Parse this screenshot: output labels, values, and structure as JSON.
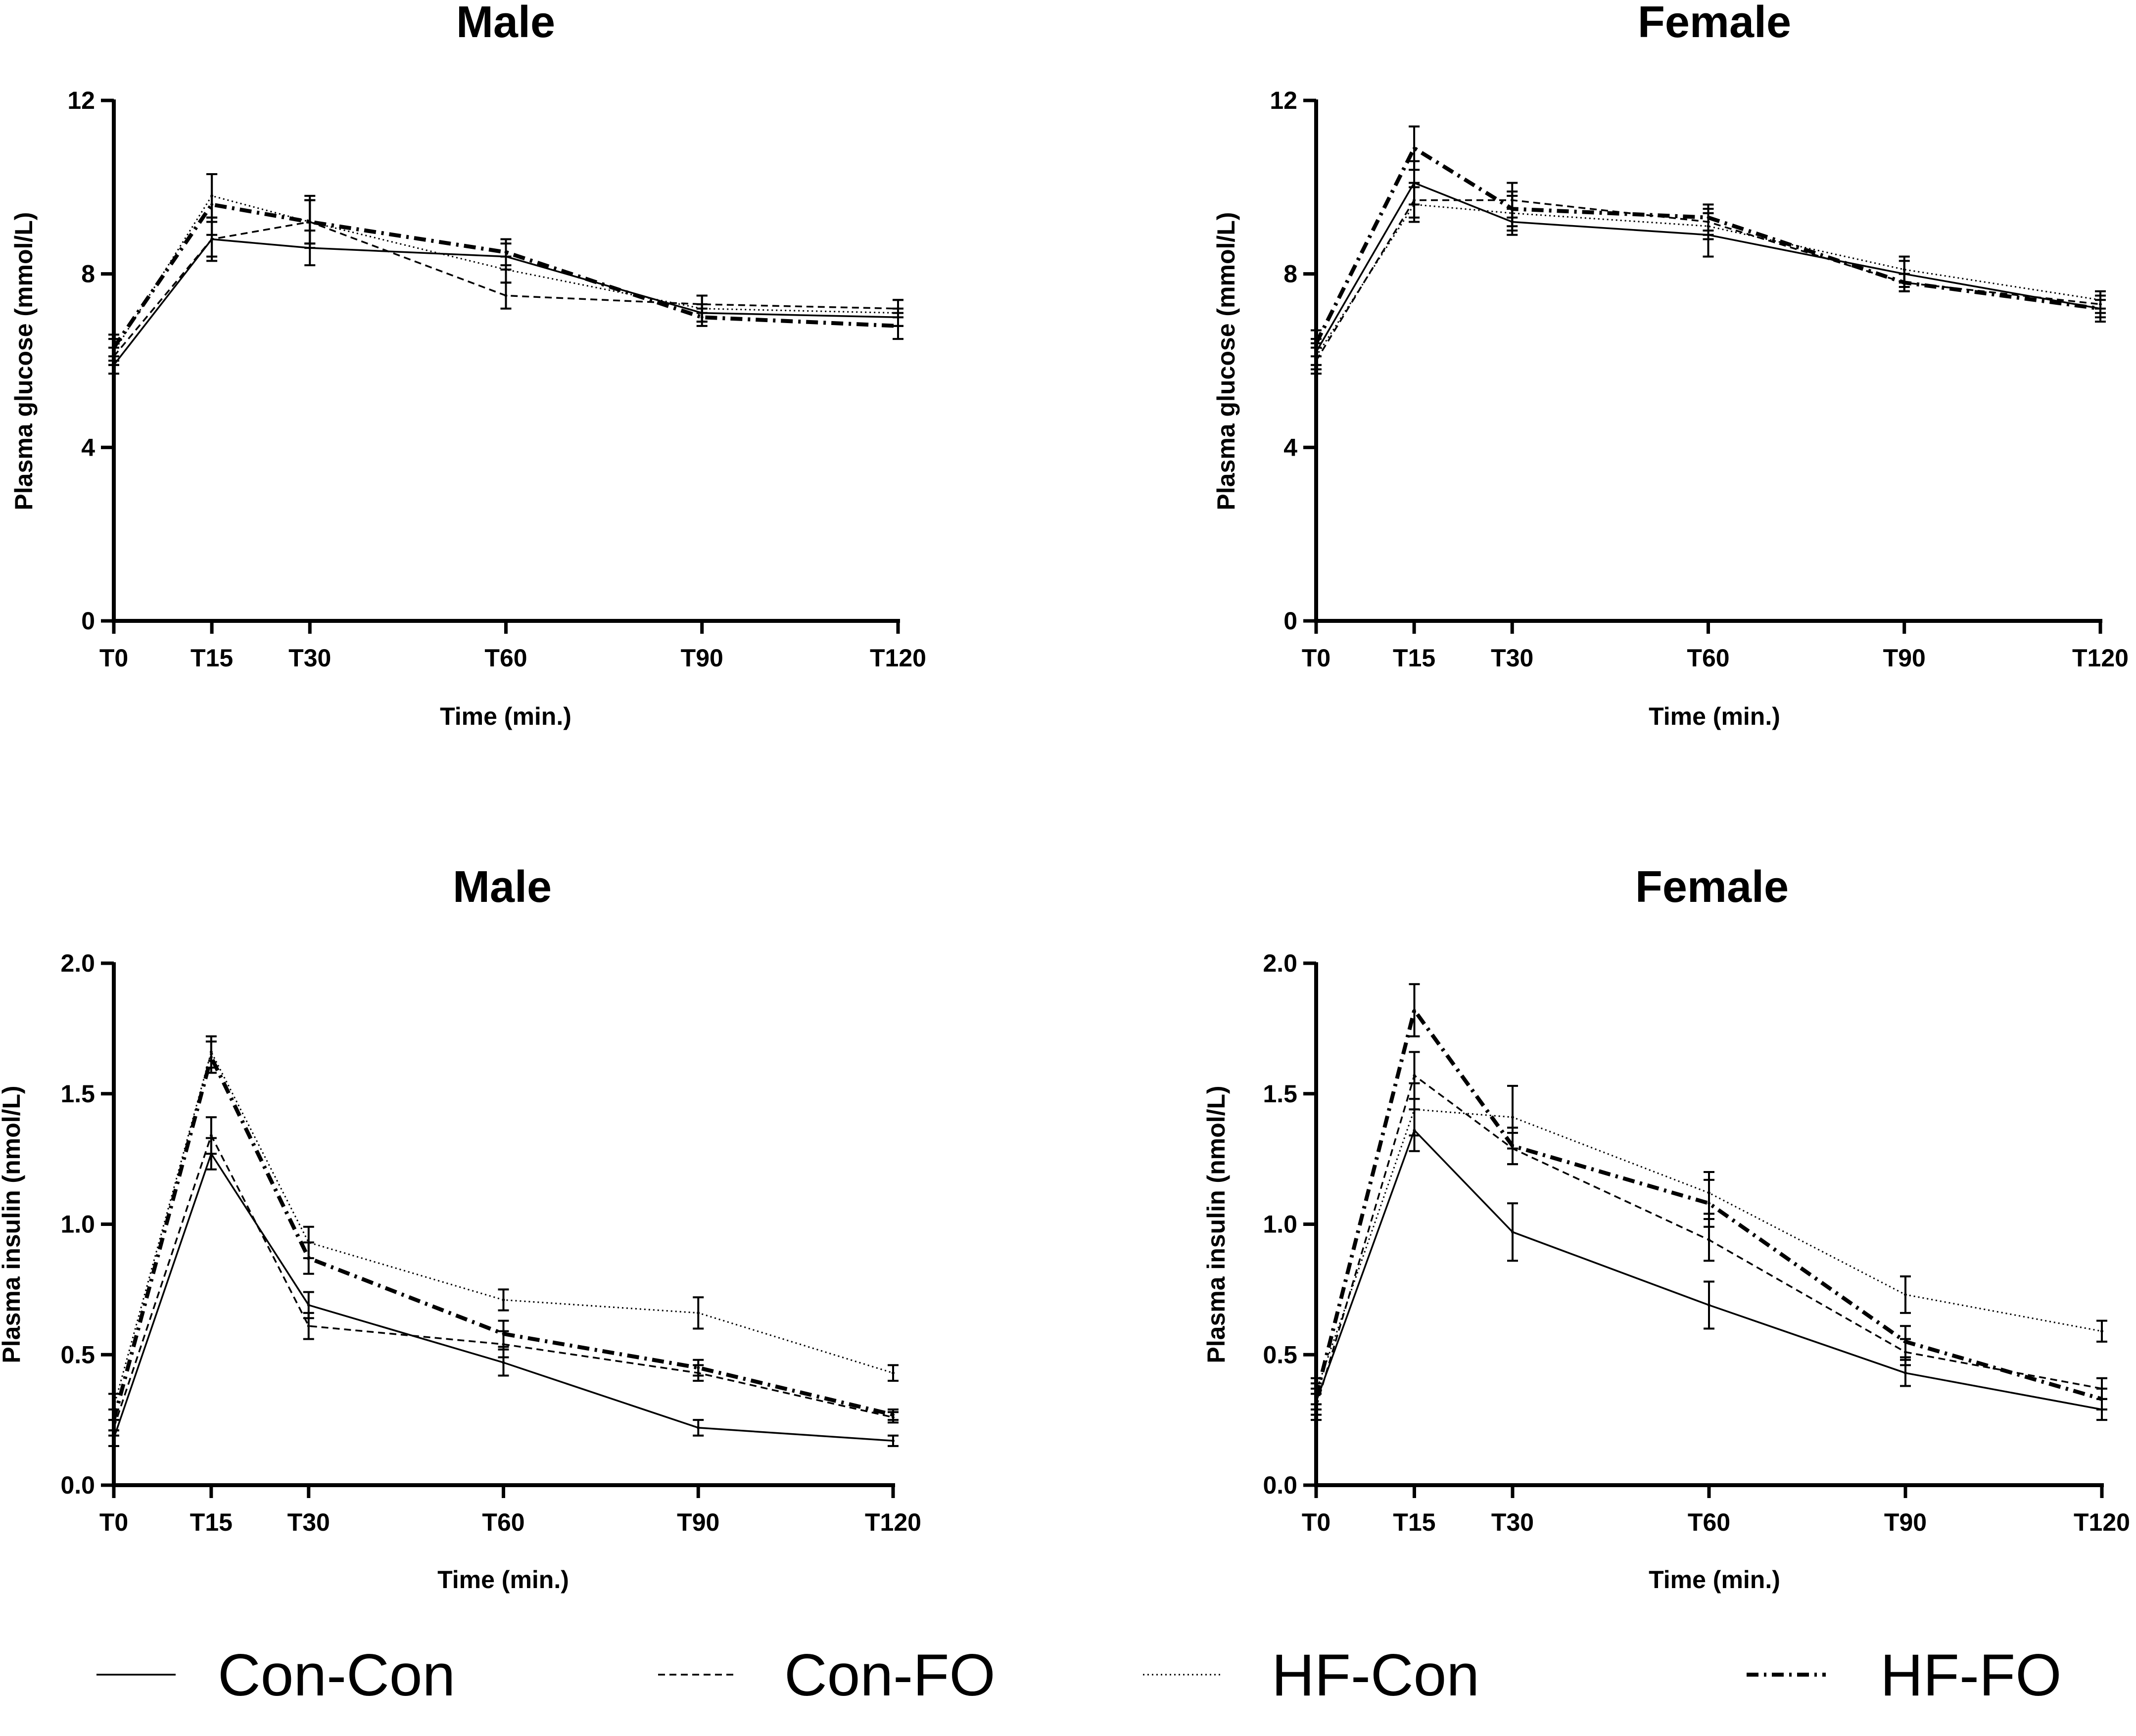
{
  "series_styles": [
    {
      "name": "Con-Con",
      "dash": "none",
      "width": 3.5,
      "color": "#000000"
    },
    {
      "name": "Con-FO",
      "dash": "14,9",
      "width": 3.5,
      "color": "#000000"
    },
    {
      "name": "HF-Con",
      "dash": "3,6",
      "width": 3,
      "color": "#000000"
    },
    {
      "name": "HF-FO",
      "dash": "24,11,5,11",
      "width": 8,
      "color": "#000000"
    }
  ],
  "legend": {
    "items": [
      "Con-Con",
      "Con-FO",
      "HF-Con",
      "HF-FO"
    ]
  },
  "chart_data": [
    {
      "type": "line",
      "title": "Male",
      "xlabel": "Time (min.)",
      "ylabel": "Plasma glucose (mmol/L)",
      "x": [
        0,
        15,
        30,
        60,
        90,
        120
      ],
      "x_tick_labels": [
        "T0",
        "T15",
        "T30",
        "T60",
        "T90",
        "T120"
      ],
      "ylim": [
        0,
        12
      ],
      "y_ticks": [
        0,
        4,
        8,
        12
      ],
      "y_tick_labels": [
        "0",
        "4",
        "8",
        "12"
      ],
      "series": [
        {
          "name": "Con-Con",
          "values": [
            5.9,
            8.8,
            8.6,
            8.4,
            7.1,
            7.0
          ],
          "errors": [
            0.2,
            0.4,
            0.4,
            0.3,
            0.2,
            0.2
          ]
        },
        {
          "name": "Con-FO",
          "values": [
            6.1,
            8.8,
            9.2,
            7.5,
            7.3,
            7.2
          ],
          "errors": [
            0.2,
            0.5,
            0.5,
            0.3,
            0.2,
            0.2
          ]
        },
        {
          "name": "HF-Con",
          "values": [
            6.2,
            9.8,
            9.2,
            8.1,
            7.2,
            7.1
          ],
          "errors": [
            0.3,
            0.5,
            0.5,
            0.3,
            0.3,
            0.3
          ]
        },
        {
          "name": "HF-FO",
          "values": [
            6.3,
            9.6,
            9.2,
            8.5,
            7.0,
            6.8
          ],
          "errors": [
            0.3,
            0.7,
            0.6,
            0.3,
            0.2,
            0.3
          ]
        }
      ]
    },
    {
      "type": "line",
      "title": "Female",
      "xlabel": "Time (min.)",
      "ylabel": "Plasma glucose (mmol/L)",
      "x": [
        0,
        15,
        30,
        60,
        90,
        120
      ],
      "x_tick_labels": [
        "T0",
        "T15",
        "T30",
        "T60",
        "T90",
        "T120"
      ],
      "ylim": [
        0,
        12
      ],
      "y_ticks": [
        0,
        4,
        8,
        12
      ],
      "y_tick_labels": [
        "0",
        "4",
        "8",
        "12"
      ],
      "series": [
        {
          "name": "Con-Con",
          "values": [
            6.2,
            10.1,
            9.2,
            8.9,
            8.0,
            7.2
          ],
          "errors": [
            0.3,
            0.5,
            0.3,
            0.5,
            0.3,
            0.3
          ]
        },
        {
          "name": "Con-FO",
          "values": [
            6.0,
            9.7,
            9.7,
            9.2,
            7.8,
            7.3
          ],
          "errors": [
            0.3,
            0.4,
            0.4,
            0.3,
            0.2,
            0.2
          ]
        },
        {
          "name": "HF-Con",
          "values": [
            6.1,
            9.6,
            9.4,
            9.1,
            8.1,
            7.4
          ],
          "errors": [
            0.3,
            0.4,
            0.4,
            0.3,
            0.3,
            0.2
          ]
        },
        {
          "name": "HF-FO",
          "values": [
            6.4,
            10.9,
            9.5,
            9.3,
            7.8,
            7.2
          ],
          "errors": [
            0.3,
            0.5,
            0.4,
            0.3,
            0.2,
            0.2
          ]
        }
      ]
    },
    {
      "type": "line",
      "title": "Male",
      "xlabel": "Time (min.)",
      "ylabel": "Plasma insulin (nmol/L)",
      "x": [
        0,
        15,
        30,
        60,
        90,
        120
      ],
      "x_tick_labels": [
        "T0",
        "T15",
        "T30",
        "T60",
        "T90",
        "T120"
      ],
      "ylim": [
        0,
        2
      ],
      "y_ticks": [
        0,
        0.5,
        1,
        1.5,
        2
      ],
      "y_tick_labels": [
        "0.0",
        "0.5",
        "1.0",
        "1.5",
        "2.0"
      ],
      "series": [
        {
          "name": "Con-Con",
          "values": [
            0.18,
            1.27,
            0.69,
            0.47,
            0.22,
            0.17
          ],
          "errors": [
            0.03,
            0.06,
            0.05,
            0.05,
            0.03,
            0.02
          ]
        },
        {
          "name": "Con-FO",
          "values": [
            0.22,
            1.34,
            0.61,
            0.54,
            0.43,
            0.26
          ],
          "errors": [
            0.03,
            0.07,
            0.05,
            0.05,
            0.03,
            0.02
          ]
        },
        {
          "name": "HF-Con",
          "values": [
            0.3,
            1.66,
            0.93,
            0.71,
            0.66,
            0.43
          ],
          "errors": [
            0.05,
            0.06,
            0.06,
            0.04,
            0.06,
            0.03
          ]
        },
        {
          "name": "HF-FO",
          "values": [
            0.25,
            1.64,
            0.87,
            0.58,
            0.45,
            0.27
          ],
          "errors": [
            0.04,
            0.06,
            0.06,
            0.05,
            0.03,
            0.02
          ]
        }
      ]
    },
    {
      "type": "line",
      "title": "Female",
      "xlabel": "Time (min.)",
      "ylabel": "Plasma insulin (nmol/L)",
      "x": [
        0,
        15,
        30,
        60,
        90,
        120
      ],
      "x_tick_labels": [
        "T0",
        "T15",
        "T30",
        "T60",
        "T90",
        "T120"
      ],
      "ylim": [
        0,
        2
      ],
      "y_ticks": [
        0,
        0.5,
        1,
        1.5,
        2
      ],
      "y_tick_labels": [
        "0.0",
        "0.5",
        "1.0",
        "1.5",
        "2.0"
      ],
      "series": [
        {
          "name": "Con-Con",
          "values": [
            0.32,
            1.36,
            0.97,
            0.69,
            0.43,
            0.29
          ],
          "errors": [
            0.05,
            0.08,
            0.11,
            0.09,
            0.05,
            0.04
          ]
        },
        {
          "name": "Con-FO",
          "values": [
            0.3,
            1.57,
            1.29,
            0.94,
            0.51,
            0.37
          ],
          "errors": [
            0.05,
            0.09,
            0.06,
            0.08,
            0.05,
            0.04
          ]
        },
        {
          "name": "HF-Con",
          "values": [
            0.36,
            1.44,
            1.41,
            1.12,
            0.73,
            0.59
          ],
          "errors": [
            0.05,
            0.1,
            0.12,
            0.08,
            0.07,
            0.04
          ]
        },
        {
          "name": "HF-FO",
          "values": [
            0.34,
            1.82,
            1.3,
            1.08,
            0.55,
            0.33
          ],
          "errors": [
            0.05,
            0.1,
            0.07,
            0.09,
            0.06,
            0.04
          ]
        }
      ]
    }
  ]
}
